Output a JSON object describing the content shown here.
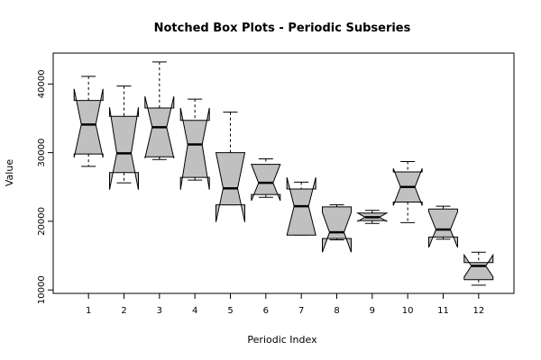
{
  "chart_data": {
    "type": "notched-boxplot",
    "title": "Notched Box Plots - Periodic Subseries",
    "xlabel": "Periodic Index",
    "ylabel": "Value",
    "ylim": [
      9500,
      44500
    ],
    "y_ticks": [
      10000,
      20000,
      30000,
      40000
    ],
    "box_fill": "#c0c0c0",
    "boxes": [
      {
        "label": "1",
        "min": 28000,
        "q1": 29800,
        "median": 34100,
        "q3": 37600,
        "max": 41100,
        "notch_lo": 29300,
        "notch_hi": 39300
      },
      {
        "label": "2",
        "min": 25600,
        "q1": 27100,
        "median": 29900,
        "q3": 35300,
        "max": 39700,
        "notch_lo": 24600,
        "notch_hi": 36600
      },
      {
        "label": "3",
        "min": 29000,
        "q1": 29400,
        "median": 33700,
        "q3": 36500,
        "max": 43200,
        "notch_lo": 29200,
        "notch_hi": 38200
      },
      {
        "label": "4",
        "min": 26000,
        "q1": 26400,
        "median": 31200,
        "q3": 34700,
        "max": 37800,
        "notch_lo": 24600,
        "notch_hi": 36500
      },
      {
        "label": "5",
        "min": 22400,
        "q1": 22400,
        "median": 24800,
        "q3": 30000,
        "max": 35900,
        "notch_lo": 19900,
        "notch_hi": 30000
      },
      {
        "label": "6",
        "min": 23500,
        "q1": 23900,
        "median": 25600,
        "q3": 28300,
        "max": 29100,
        "notch_lo": 23000,
        "notch_hi": 28300
      },
      {
        "label": "7",
        "min": 18000,
        "q1": 18000,
        "median": 22200,
        "q3": 24700,
        "max": 25700,
        "notch_lo": 18000,
        "notch_hi": 26400
      },
      {
        "label": "8",
        "min": 17300,
        "q1": 17500,
        "median": 18400,
        "q3": 22100,
        "max": 22400,
        "notch_lo": 15500,
        "notch_hi": 21300
      },
      {
        "label": "9",
        "min": 19700,
        "q1": 20100,
        "median": 20600,
        "q3": 21200,
        "max": 21600,
        "notch_lo": 20000,
        "notch_hi": 21200
      },
      {
        "label": "10",
        "min": 19800,
        "q1": 22800,
        "median": 25000,
        "q3": 27200,
        "max": 28700,
        "notch_lo": 22300,
        "notch_hi": 27700
      },
      {
        "label": "11",
        "min": 17400,
        "q1": 17700,
        "median": 18800,
        "q3": 21800,
        "max": 22200,
        "notch_lo": 16200,
        "notch_hi": 21400
      },
      {
        "label": "12",
        "min": 10700,
        "q1": 11500,
        "median": 13500,
        "q3": 14000,
        "max": 15500,
        "notch_lo": 11900,
        "notch_hi": 15100
      }
    ]
  }
}
